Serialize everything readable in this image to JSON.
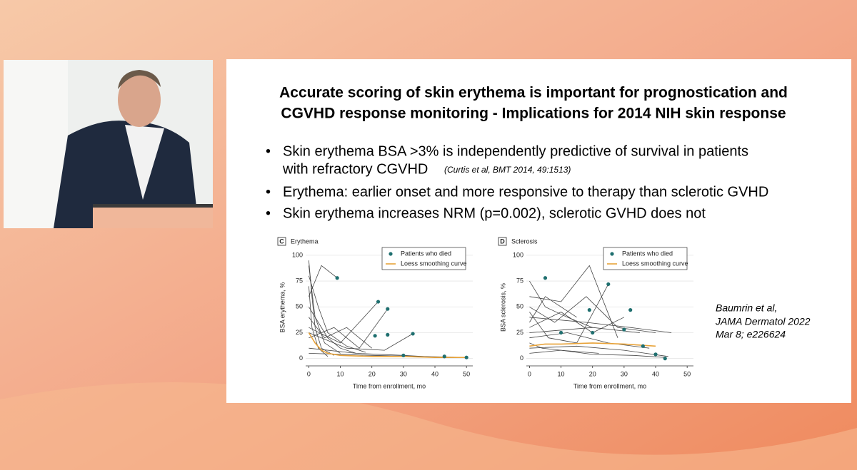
{
  "slide": {
    "title": [
      "Accurate scoring of skin erythema is important for prognostication and",
      "CGVHD response monitoring - Implications for 2014 NIH skin response"
    ],
    "bullets": [
      {
        "text": [
          "Skin erythema BSA >3% is independently predictive of survival in patients",
          "with refractory CGVHD"
        ],
        "citation": "(Curtis et al, BMT 2014, 49:1513)"
      },
      {
        "text": [
          "Erythema: earlier onset and more responsive to therapy than sclerotic GVHD"
        ]
      },
      {
        "text": [
          "Skin erythema increases NRM (p=0.002), sclerotic GVHD does not"
        ]
      }
    ],
    "reference": [
      "Baumrin et al,",
      "JAMA Dermatol 2022",
      "Mar 8; e226624"
    ]
  },
  "chart_data": [
    {
      "type": "line",
      "panel": "C",
      "title": "Erythema",
      "x_label": "Time from enrollment, mo",
      "y_label": "BSA erythema, %",
      "xlim": [
        -1,
        52
      ],
      "xticks": [
        0,
        10,
        20,
        30,
        40,
        50
      ],
      "ylim": [
        -3,
        102
      ],
      "yticks": [
        0,
        25,
        50,
        75,
        100
      ],
      "grid": true,
      "series": [
        {
          "color": "#444444",
          "x": [
            0,
            1,
            2,
            4,
            8
          ],
          "values": [
            95,
            60,
            30,
            10,
            3
          ]
        },
        {
          "color": "#444444",
          "x": [
            0,
            2,
            5,
            10
          ],
          "values": [
            90,
            40,
            15,
            5
          ]
        },
        {
          "color": "#444444",
          "x": [
            0,
            3,
            6,
            12,
            18
          ],
          "values": [
            80,
            50,
            25,
            12,
            6
          ]
        },
        {
          "color": "#444444",
          "x": [
            0,
            1,
            3,
            6
          ],
          "values": [
            70,
            30,
            10,
            2
          ]
        },
        {
          "color": "#444444",
          "x": [
            0,
            2,
            4,
            9
          ],
          "values": [
            60,
            75,
            90,
            78
          ]
        },
        {
          "color": "#444444",
          "x": [
            0,
            5,
            12,
            20
          ],
          "values": [
            40,
            20,
            30,
            10
          ]
        },
        {
          "color": "#444444",
          "x": [
            0,
            10,
            22
          ],
          "values": [
            30,
            15,
            55
          ]
        },
        {
          "color": "#444444",
          "x": [
            0,
            8,
            16,
            25
          ],
          "values": [
            20,
            30,
            10,
            48
          ]
        },
        {
          "color": "#444444",
          "x": [
            0,
            15,
            30,
            42
          ],
          "values": [
            10,
            5,
            3,
            1
          ]
        },
        {
          "color": "#444444",
          "x": [
            0,
            20,
            35,
            50
          ],
          "values": [
            5,
            3,
            2,
            1
          ]
        },
        {
          "color": "#444444",
          "x": [
            0,
            12,
            24,
            33
          ],
          "values": [
            25,
            10,
            8,
            24
          ]
        },
        {
          "color": "#444444",
          "x": [
            0,
            3,
            6,
            10,
            15
          ],
          "values": [
            50,
            35,
            20,
            10,
            5
          ]
        },
        {
          "name": "Loess smoothing curve",
          "type": "line",
          "color": "#e8a33a",
          "x": [
            0,
            2,
            4,
            6,
            10,
            20,
            30,
            40,
            50
          ],
          "values": [
            25,
            15,
            8,
            5,
            3,
            2,
            2,
            1,
            1
          ]
        },
        {
          "name": "Patients who died",
          "type": "scatter",
          "color": "#1f6f6f",
          "x": [
            9,
            22,
            25,
            21,
            25,
            33,
            30,
            43,
            50
          ],
          "values": [
            78,
            55,
            48,
            22,
            23,
            24,
            3,
            2,
            1
          ]
        }
      ]
    },
    {
      "type": "line",
      "panel": "D",
      "title": "Sclerosis",
      "x_label": "Time from enrollment, mo",
      "y_label": "BSA sclerosis, %",
      "xlim": [
        -1,
        52
      ],
      "xticks": [
        0,
        10,
        20,
        30,
        40,
        50
      ],
      "ylim": [
        -3,
        102
      ],
      "yticks": [
        0,
        25,
        50,
        75,
        100
      ],
      "grid": true,
      "series": [
        {
          "color": "#444444",
          "x": [
            0,
            5,
            12,
            20
          ],
          "values": [
            75,
            50,
            40,
            30
          ]
        },
        {
          "color": "#444444",
          "x": [
            0,
            8,
            18,
            28,
            40
          ],
          "values": [
            50,
            35,
            60,
            30,
            25
          ]
        },
        {
          "color": "#444444",
          "x": [
            0,
            10,
            20,
            30
          ],
          "values": [
            30,
            45,
            25,
            40
          ]
        },
        {
          "color": "#444444",
          "x": [
            0,
            6,
            15,
            25
          ],
          "values": [
            45,
            20,
            15,
            72
          ]
        },
        {
          "color": "#444444",
          "x": [
            0,
            10,
            19,
            28
          ],
          "values": [
            60,
            55,
            90,
            20
          ]
        },
        {
          "color": "#444444",
          "x": [
            0,
            12,
            25,
            38
          ],
          "values": [
            20,
            25,
            15,
            10
          ]
        },
        {
          "color": "#444444",
          "x": [
            0,
            15,
            30,
            44
          ],
          "values": [
            10,
            12,
            8,
            2
          ]
        },
        {
          "color": "#444444",
          "x": [
            0,
            5,
            15
          ],
          "values": [
            35,
            60,
            40
          ]
        },
        {
          "color": "#444444",
          "x": [
            0,
            20,
            35
          ],
          "values": [
            25,
            30,
            25
          ]
        },
        {
          "color": "#444444",
          "x": [
            0,
            4,
            10,
            22
          ],
          "values": [
            15,
            10,
            8,
            5
          ]
        },
        {
          "color": "#444444",
          "x": [
            0,
            18,
            32,
            45
          ],
          "values": [
            40,
            35,
            30,
            25
          ]
        },
        {
          "color": "#444444",
          "x": [
            0,
            10,
            20,
            33,
            43
          ],
          "values": [
            5,
            8,
            4,
            3,
            1
          ]
        },
        {
          "name": "Loess smoothing curve",
          "type": "line",
          "color": "#e8a33a",
          "x": [
            0,
            5,
            10,
            20,
            30,
            40
          ],
          "values": [
            12,
            14,
            14,
            15,
            14,
            12
          ]
        },
        {
          "name": "Patients who died",
          "type": "scatter",
          "color": "#1f6f6f",
          "x": [
            5,
            25,
            19,
            32,
            20,
            30,
            36,
            40,
            43,
            10
          ],
          "values": [
            78,
            72,
            47,
            47,
            25,
            28,
            12,
            4,
            0,
            25
          ]
        }
      ]
    }
  ]
}
